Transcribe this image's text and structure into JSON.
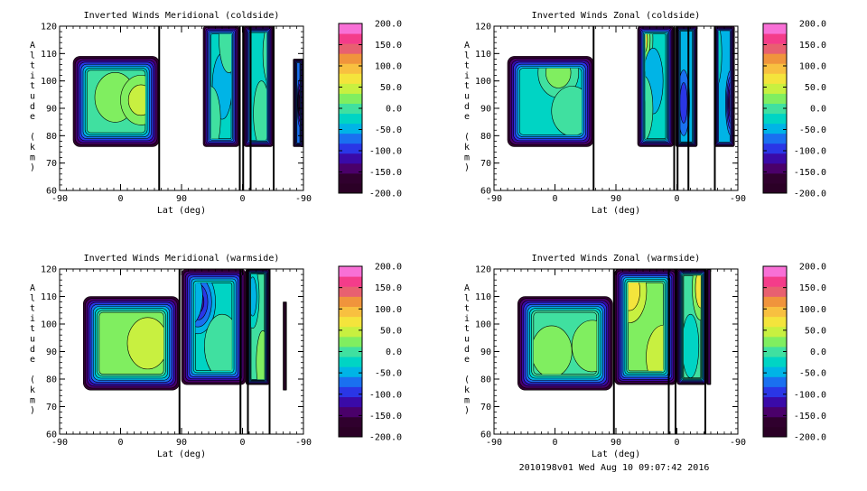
{
  "colors": {
    "background": "#ffffff",
    "axes": "#000000",
    "contour_line": "#000000",
    "colorbar_stops": [
      "#2b0026",
      "#30002e",
      "#4a006a",
      "#3a0aa8",
      "#2a36e6",
      "#1a70f0",
      "#00b4e6",
      "#00d4c4",
      "#40e0a0",
      "#80ee60",
      "#c8f040",
      "#f4e43c",
      "#f8c040",
      "#f0943c",
      "#e86070",
      "#f43c8a",
      "#f870d6"
    ]
  },
  "footer": {
    "text": "2010198v01 Wed Aug 10 09:07:42 2016"
  },
  "chart_data": [
    {
      "type": "contour",
      "title": "Inverted Winds Meridional (coldside)",
      "xlabel": "Lat (deg)",
      "ylabel": "Altitude (km)",
      "ylabel_letters": [
        "A",
        "l",
        "t",
        "i",
        "t",
        "u",
        "d",
        "e",
        "",
        "(",
        "k",
        "m",
        ")"
      ],
      "x_ticks": [
        "-90",
        "0",
        "90",
        "0",
        "-90"
      ],
      "y_ticks": [
        "60",
        "70",
        "80",
        "90",
        "100",
        "110",
        "120"
      ],
      "ylim": [
        60,
        120
      ],
      "xlim": [
        -90,
        270
      ],
      "colorbar_ticks": [
        "200.0",
        "150.0",
        "100.0",
        "50.0",
        "0.0",
        "-50.0",
        "-100.0",
        "-150.0",
        "-200.0"
      ],
      "colorbar_range": [
        -200,
        200
      ],
      "contour_interval": 25,
      "regions": [
        {
          "x": [
            -70,
            57
          ],
          "alt": [
            76,
            109
          ],
          "base": -8,
          "features": [
            {
              "x": -8,
              "alt": 94,
              "amp": 42
            },
            {
              "x": 30,
              "alt": 93,
              "amp": 65
            },
            {
              "x": -55,
              "alt": 92,
              "amp": 10
            }
          ]
        },
        {
          "x": [
            122,
            175
          ],
          "alt": [
            76,
            120
          ],
          "base": -25,
          "features": [
            {
              "x": 150,
              "alt": 98,
              "amp": -45
            },
            {
              "x": 133,
              "alt": 86,
              "amp": 35
            },
            {
              "x": 160,
              "alt": 115,
              "amp": 30
            }
          ]
        },
        {
          "x": [
            182,
            225
          ],
          "alt": [
            76,
            120
          ],
          "base": -35,
          "features": [
            {
              "x": 208,
              "alt": 88,
              "amp": 40
            },
            {
              "x": 222,
              "alt": 110,
              "amp": 25
            }
          ]
        },
        {
          "x": [
            255,
            270
          ],
          "alt": [
            76,
            108
          ],
          "base": -60,
          "features": [
            {
              "x": 265,
              "alt": 92,
              "amp": -120
            }
          ]
        }
      ],
      "dividers_lat": [
        57,
        176,
        181,
        192,
        226
      ]
    },
    {
      "type": "contour",
      "title": "Inverted Winds Zonal (coldside)",
      "xlabel": "Lat (deg)",
      "ylabel": "Altitude (km)",
      "ylabel_letters": [
        "A",
        "l",
        "t",
        "i",
        "t",
        "u",
        "d",
        "e",
        "",
        "(",
        "k",
        "m",
        ")"
      ],
      "x_ticks": [
        "-90",
        "0",
        "90",
        "0",
        "-90"
      ],
      "y_ticks": [
        "60",
        "70",
        "80",
        "90",
        "100",
        "110",
        "120"
      ],
      "ylim": [
        60,
        120
      ],
      "xlim": [
        -90,
        270
      ],
      "colorbar_ticks": [
        "200.0",
        "150.0",
        "100.0",
        "50.0",
        "0.0",
        "-50.0",
        "-100.0",
        "-150.0",
        "-200.0"
      ],
      "colorbar_range": [
        -200,
        200
      ],
      "contour_interval": 25,
      "regions": [
        {
          "x": [
            -70,
            57
          ],
          "alt": [
            76,
            109
          ],
          "base": -25,
          "features": [
            {
              "x": 5,
              "alt": 103,
              "amp": 70
            },
            {
              "x": 25,
              "alt": 89,
              "amp": 35
            },
            {
              "x": -50,
              "alt": 92,
              "amp": -15
            }
          ]
        },
        {
          "x": [
            122,
            175
          ],
          "alt": [
            76,
            120
          ],
          "base": -15,
          "features": [
            {
              "x": 130,
              "alt": 115,
              "amp": 80
            },
            {
              "x": 145,
              "alt": 100,
              "amp": -35
            },
            {
              "x": 130,
              "alt": 90,
              "amp": 45
            }
          ]
        },
        {
          "x": [
            178,
            210
          ],
          "alt": [
            76,
            120
          ],
          "base": -45,
          "features": [
            {
              "x": 190,
              "alt": 92,
              "amp": -70
            }
          ]
        },
        {
          "x": [
            235,
            265
          ],
          "alt": [
            76,
            120
          ],
          "base": -50,
          "features": [
            {
              "x": 260,
              "alt": 92,
              "amp": -140
            },
            {
              "x": 238,
              "alt": 110,
              "amp": 30
            }
          ]
        }
      ],
      "dividers_lat": [
        57,
        176,
        181,
        197,
        236
      ]
    },
    {
      "type": "contour",
      "title": "Inverted Winds Meridional (warmside)",
      "xlabel": "Lat (deg)",
      "ylabel": "Altitude (km)",
      "ylabel_letters": [
        "A",
        "l",
        "t",
        "i",
        "t",
        "u",
        "d",
        "e",
        "",
        "(",
        "k",
        "m",
        ")"
      ],
      "x_ticks": [
        "-90",
        "0",
        "90",
        "0",
        "-90"
      ],
      "y_ticks": [
        "60",
        "70",
        "80",
        "90",
        "100",
        "110",
        "120"
      ],
      "ylim": [
        60,
        120
      ],
      "xlim": [
        -90,
        270
      ],
      "colorbar_ticks": [
        "200.0",
        "150.0",
        "100.0",
        "50.0",
        "0.0",
        "-50.0",
        "-100.0",
        "-150.0",
        "-200.0"
      ],
      "colorbar_range": [
        -200,
        200
      ],
      "contour_interval": 25,
      "regions": [
        {
          "x": [
            -55,
            87
          ],
          "alt": [
            76,
            110
          ],
          "base": 12,
          "features": [
            {
              "x": 40,
              "alt": 93,
              "amp": 45
            },
            {
              "x": -20,
              "alt": 84,
              "amp": 10
            },
            {
              "x": 70,
              "alt": 108,
              "amp": -20
            }
          ]
        },
        {
          "x": [
            90,
            185
          ],
          "alt": [
            78,
            120
          ],
          "base": -20,
          "features": [
            {
              "x": 114,
              "alt": 108,
              "amp": -100
            },
            {
              "x": 95,
              "alt": 110,
              "amp": -35
            },
            {
              "x": 150,
              "alt": 92,
              "amp": 35
            }
          ]
        },
        {
          "x": [
            185,
            220
          ],
          "alt": [
            78,
            120
          ],
          "base": -5,
          "features": [
            {
              "x": 210,
              "alt": 86,
              "amp": 45
            },
            {
              "x": 195,
              "alt": 110,
              "amp": -50
            }
          ]
        },
        {
          "x": [
            240,
            245
          ],
          "alt": [
            76,
            108
          ],
          "base": -160,
          "features": []
        }
      ],
      "dividers_lat": [
        87,
        177,
        188,
        220
      ]
    },
    {
      "type": "contour",
      "title": "Inverted Winds Zonal (warmside)",
      "xlabel": "Lat (deg)",
      "ylabel": "Altitude (km)",
      "ylabel_letters": [
        "A",
        "l",
        "t",
        "i",
        "t",
        "u",
        "d",
        "e",
        "",
        "(",
        "k",
        "m",
        ")"
      ],
      "x_ticks": [
        "-90",
        "0",
        "90",
        "0",
        "-90"
      ],
      "y_ticks": [
        "60",
        "70",
        "80",
        "90",
        "100",
        "110",
        "120"
      ],
      "ylim": [
        60,
        120
      ],
      "xlim": [
        -90,
        270
      ],
      "colorbar_ticks": [
        "200.0",
        "150.0",
        "100.0",
        "50.0",
        "0.0",
        "-50.0",
        "-100.0",
        "-150.0",
        "-200.0"
      ],
      "colorbar_range": [
        -200,
        200
      ],
      "contour_interval": 25,
      "regions": [
        {
          "x": [
            -55,
            85
          ],
          "alt": [
            76,
            110
          ],
          "base": 5,
          "features": [
            {
              "x": -5,
              "alt": 90,
              "amp": 45
            },
            {
              "x": 55,
              "alt": 92,
              "amp": 30
            },
            {
              "x": -40,
              "alt": 102,
              "amp": -10
            }
          ]
        },
        {
          "x": [
            88,
            180
          ],
          "alt": [
            78,
            120
          ],
          "base": 20,
          "features": [
            {
              "x": 110,
              "alt": 112,
              "amp": 65
            },
            {
              "x": 150,
              "alt": 100,
              "amp": -15
            },
            {
              "x": 160,
              "alt": 88,
              "amp": 35
            }
          ]
        },
        {
          "x": [
            180,
            225
          ],
          "alt": [
            78,
            120
          ],
          "base": 10,
          "features": [
            {
              "x": 215,
              "alt": 113,
              "amp": 55
            },
            {
              "x": 200,
              "alt": 92,
              "amp": -40
            },
            {
              "x": 215,
              "alt": 84,
              "amp": 20
            }
          ]
        },
        {
          "x": [
            225,
            230
          ],
          "alt": [
            78,
            120
          ],
          "base": -150,
          "features": []
        }
      ],
      "dividers_lat": [
        87,
        168,
        178,
        222
      ]
    }
  ]
}
